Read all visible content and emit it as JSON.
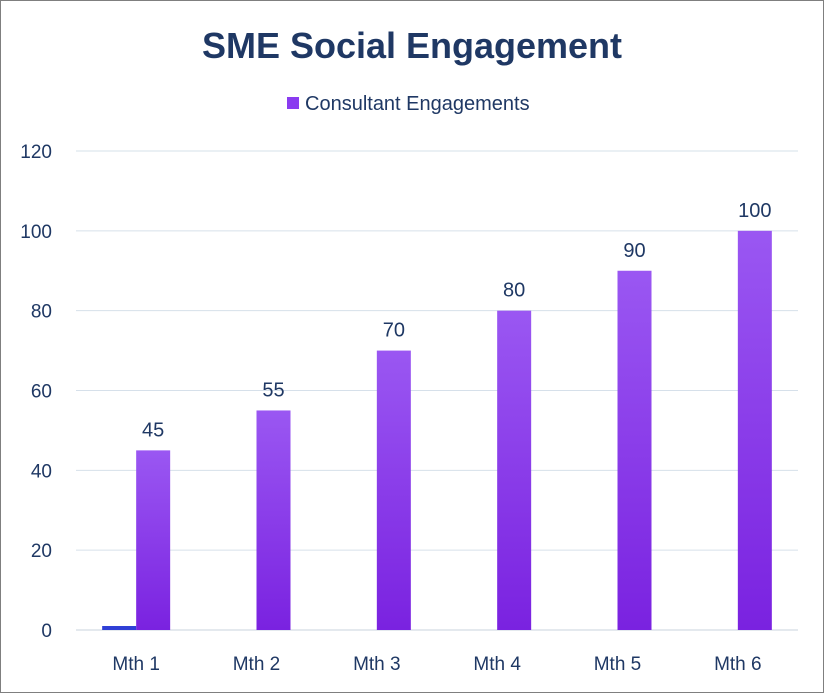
{
  "chart_data": {
    "type": "bar",
    "title": "SME Social Engagement",
    "categories": [
      "Mth 1",
      "Mth 2",
      "Mth 3",
      "Mth 4",
      "Mth 5",
      "Mth 6"
    ],
    "series": [
      {
        "name": "Consultant Engagements",
        "values": [
          45,
          55,
          70,
          80,
          90,
          100
        ]
      },
      {
        "name": "",
        "values": [
          1,
          0,
          0,
          0,
          0,
          0
        ]
      }
    ],
    "xlabel": "",
    "ylabel": "",
    "ylim": [
      0,
      120
    ],
    "yticks": [
      0,
      20,
      40,
      60,
      80,
      100,
      120
    ],
    "grid": true,
    "legend_position": "top-center",
    "colors": {
      "bar_top": "#9a57f2",
      "bar_bottom": "#7a22e0",
      "secondary_bar": "#2f3fd6",
      "legend_swatch": "#8a3cf0",
      "text": "#1f3864",
      "grid": "#d6e0ea"
    }
  }
}
